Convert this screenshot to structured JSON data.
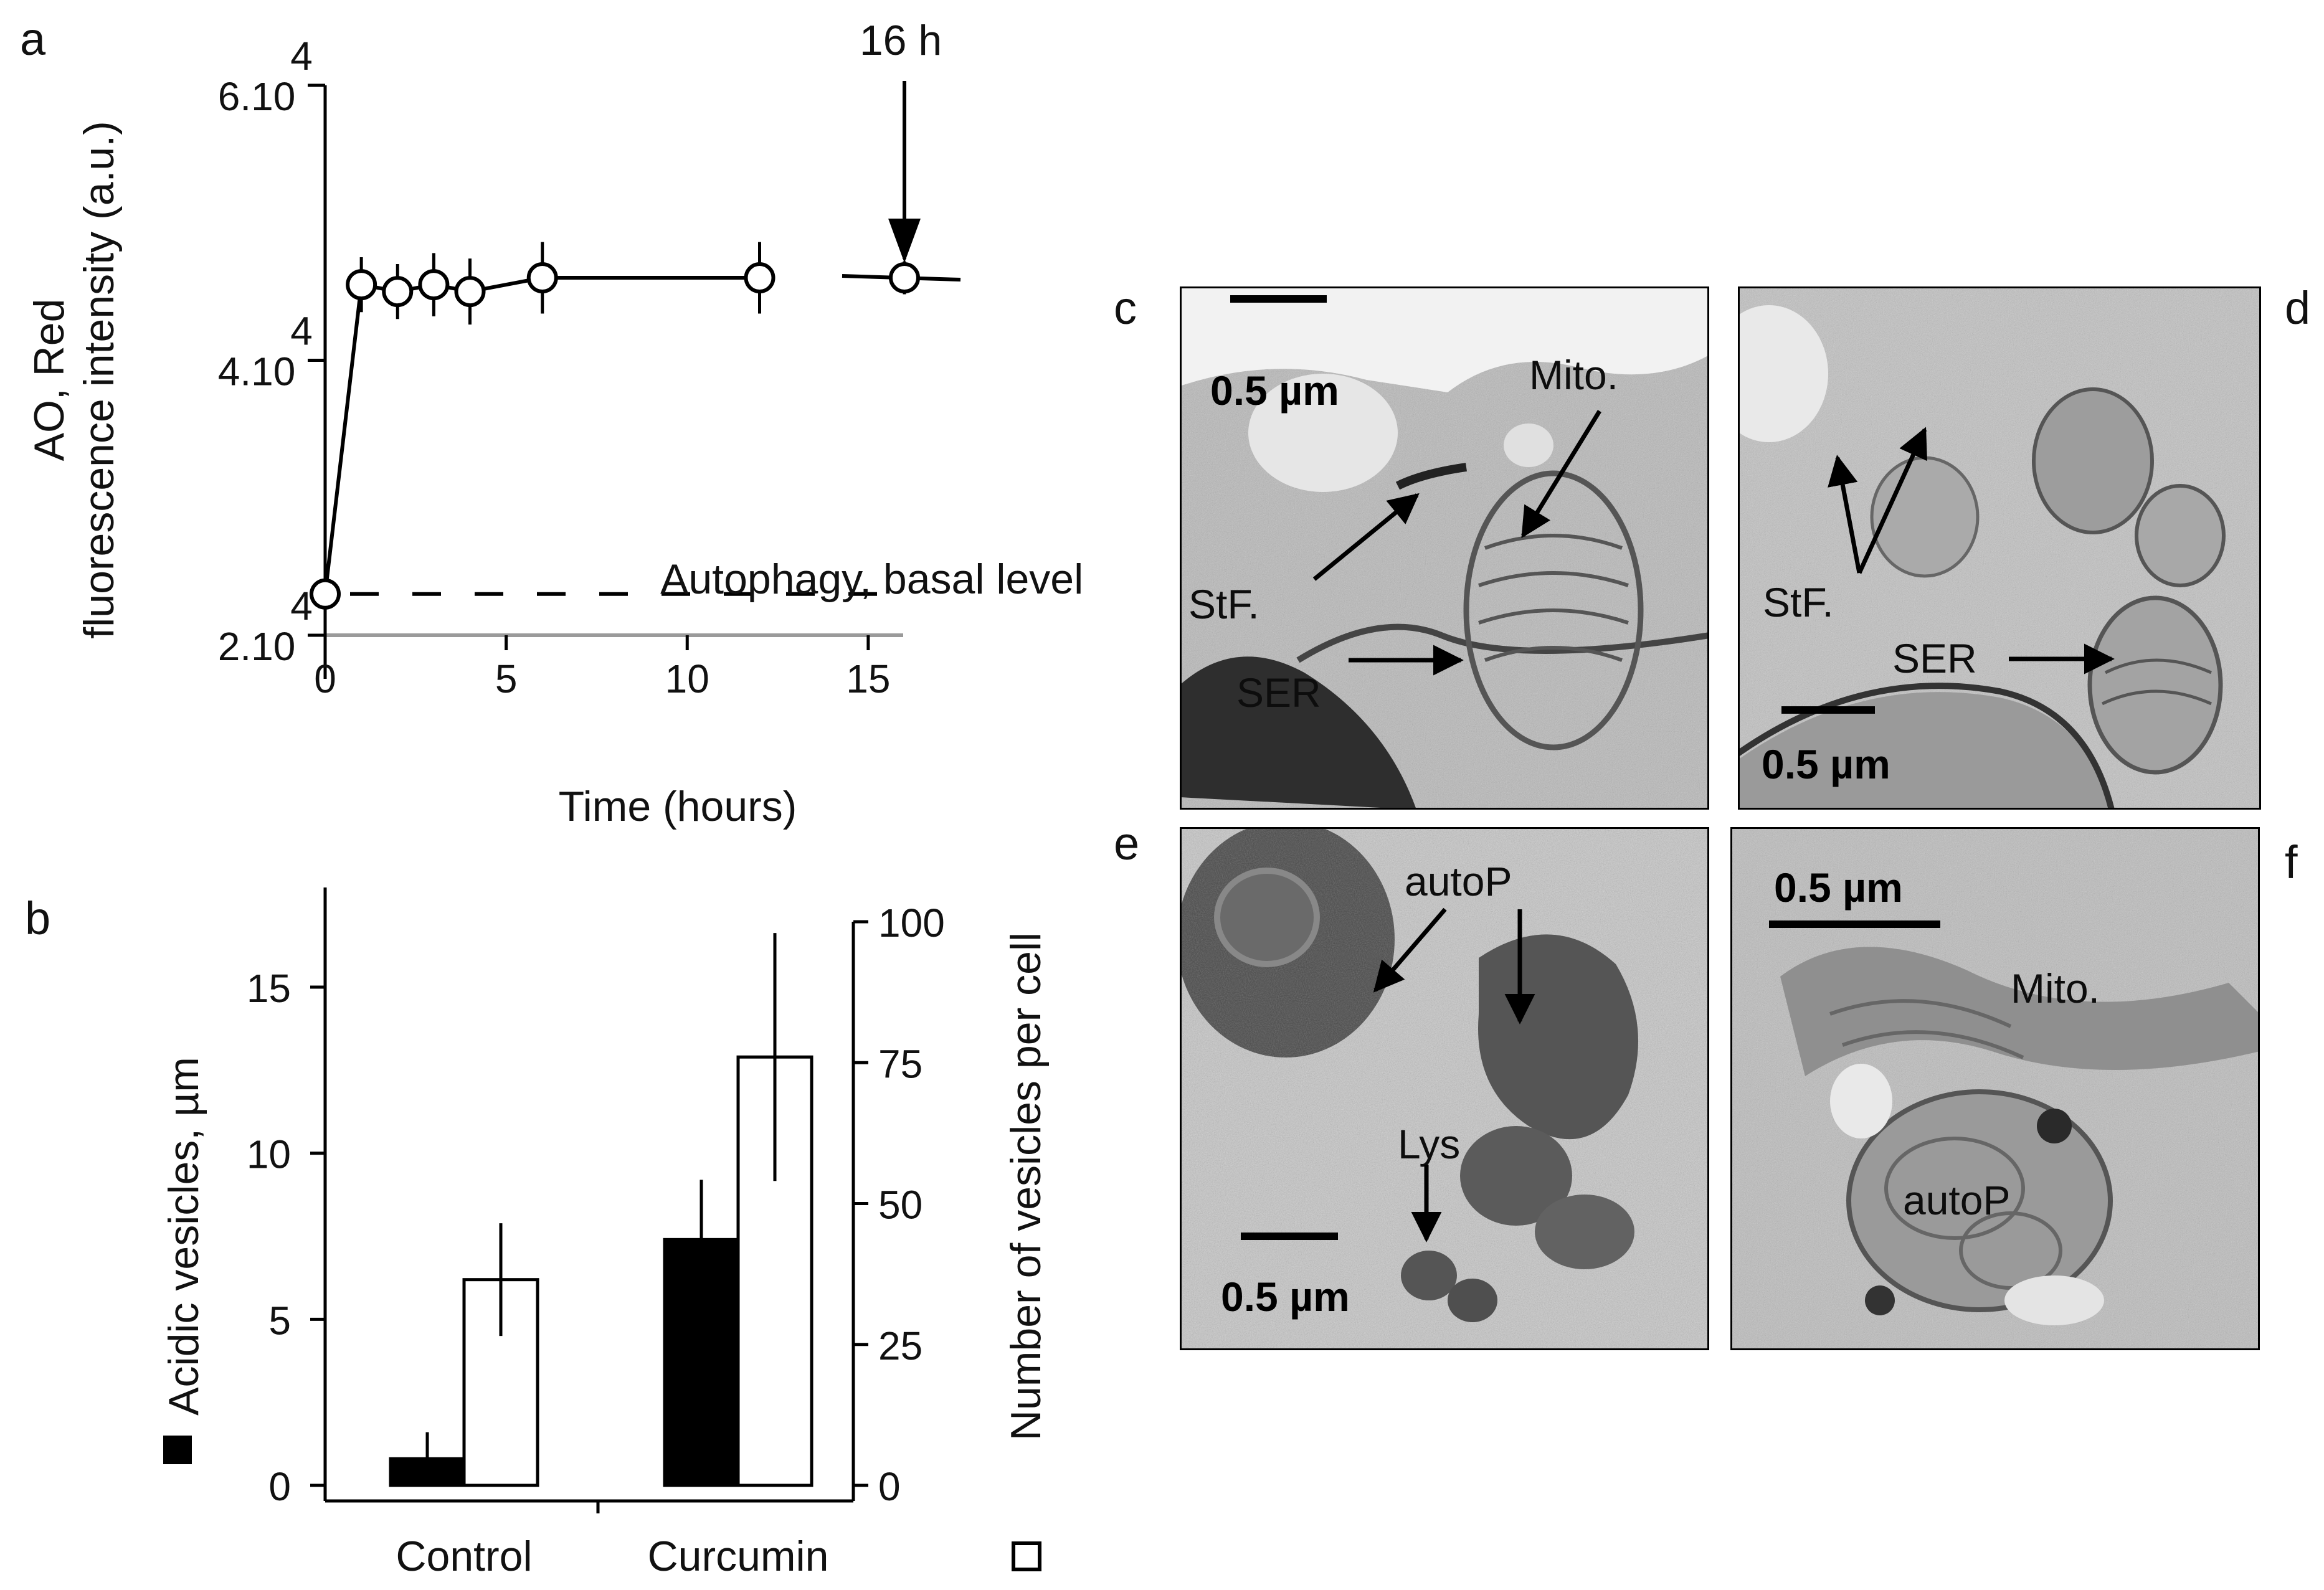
{
  "panels": {
    "a": "a",
    "b": "b",
    "c": "c",
    "d": "d",
    "e": "e",
    "f": "f"
  },
  "chart_data": [
    {
      "type": "line",
      "panel": "a",
      "xlabel": "Time (hours)",
      "ylabel_line1": "AO, Red",
      "ylabel_line2": "fluorescence intensity (a.u.)",
      "x_ticks": [
        "0",
        "5",
        "10",
        "15"
      ],
      "x_tick_values": [
        0,
        5,
        10,
        15
      ],
      "y_ticks": [
        {
          "value": 20000,
          "base": "2.10",
          "exp": "4"
        },
        {
          "value": 40000,
          "base": "4.10",
          "exp": "4"
        },
        {
          "value": 60000,
          "base": "6.10",
          "exp": "4"
        }
      ],
      "xlim": [
        0,
        16
      ],
      "ylim": [
        20000,
        60000
      ],
      "x": [
        0,
        1,
        2,
        3,
        4,
        6,
        12,
        16
      ],
      "y": [
        23000,
        45500,
        45000,
        45500,
        45000,
        46000,
        46000,
        46000
      ],
      "error": [
        0,
        2000,
        2000,
        2300,
        2400,
        2600,
        2600,
        1200
      ],
      "baseline_value": 23000,
      "baseline_label": "Autophagy, basal level",
      "arrow_label": "16 h",
      "arrow_x": 16
    },
    {
      "type": "bar",
      "panel": "b",
      "categories": [
        "Control",
        "Curcumin"
      ],
      "left_axis": {
        "ylabel": "Acidic vesicles,  µm",
        "legend_marker": "filled-square",
        "ticks": [
          "0",
          "5",
          "10",
          "15"
        ],
        "tick_values": [
          0,
          5,
          10,
          15
        ],
        "ylim": [
          0,
          18
        ]
      },
      "right_axis": {
        "ylabel": "Number  of vesicles per cell",
        "legend_marker": "open-square",
        "ticks": [
          "0",
          "25",
          "50",
          "75",
          "100"
        ],
        "tick_values": [
          0,
          25,
          50,
          75,
          100
        ],
        "ylim": [
          0,
          100
        ]
      },
      "series": [
        {
          "axis": "left",
          "fill": "#000000",
          "values": [
            0.8,
            7.4
          ],
          "error": [
            0.8,
            1.8
          ]
        },
        {
          "axis": "right",
          "fill": "#ffffff",
          "values": [
            36.5,
            76
          ],
          "error": [
            10,
            22
          ]
        }
      ]
    }
  ],
  "em_panels": {
    "c": {
      "scale": "0.5 µm",
      "labels": [
        "Mito.",
        "StF.",
        "SER"
      ]
    },
    "d": {
      "scale": "0.5 µm",
      "labels": [
        "StF.",
        "SER"
      ]
    },
    "e": {
      "scale": "0.5 µm",
      "labels": [
        "autoP",
        "Lys"
      ]
    },
    "f": {
      "scale": "0.5 µm",
      "labels": [
        "Mito.",
        "autoP"
      ]
    }
  },
  "colors": {
    "ink": "#000000",
    "axis_gray": "#9a9a9a",
    "em_light": "#d8d8d8",
    "em_dark": "#3a3a3a"
  }
}
